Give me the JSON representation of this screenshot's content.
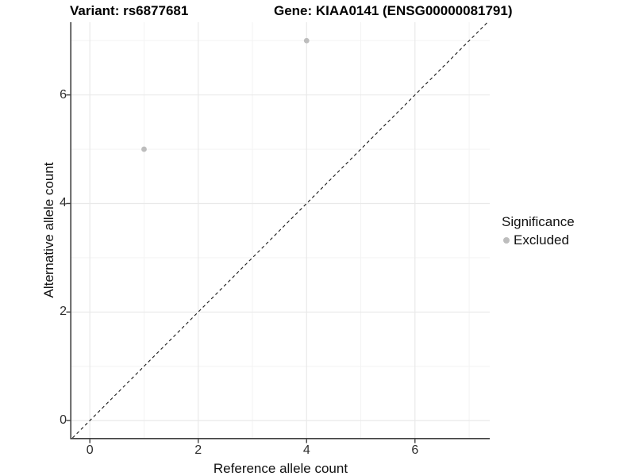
{
  "figure": {
    "title_left": "Variant: rs6877681",
    "title_right": "Gene: KIAA0141 (ENSG00000081791)"
  },
  "axes": {
    "x": {
      "label": "Reference allele count"
    },
    "y": {
      "label": "Alternative allele count"
    }
  },
  "legend": {
    "title": "Significance",
    "items": [
      {
        "label": "Excluded",
        "color": "#bdbdbd",
        "marker": "circle-icon"
      }
    ]
  },
  "chart_data": {
    "type": "scatter",
    "title": "Variant: rs6877681 | Gene: KIAA0141 (ENSG00000081791)",
    "xlabel": "Reference allele count",
    "ylabel": "Alternative allele count",
    "xlim": [
      -0.34,
      7.38
    ],
    "ylim": [
      -0.32,
      7.34
    ],
    "x_ticks": [
      0,
      2,
      4,
      6
    ],
    "y_ticks": [
      0,
      2,
      4,
      6
    ],
    "x_minor_ticks": [
      1,
      3,
      5,
      7
    ],
    "y_minor_ticks": [
      1,
      3,
      5,
      7
    ],
    "grid": "major+minor",
    "legend_position": "right",
    "series": [
      {
        "name": "Excluded",
        "color": "#bdbdbd",
        "points": [
          [
            1,
            5
          ],
          [
            4,
            7
          ]
        ]
      }
    ],
    "reference_line": {
      "equation": "y = x",
      "style": "dashed",
      "color": "#1a1a1a"
    },
    "colors": {
      "grid_major": "#e9e9e9",
      "grid_minor": "#f3f3f3",
      "axis": "#404040",
      "point": "#bdbdbd",
      "background": "#ffffff"
    }
  }
}
